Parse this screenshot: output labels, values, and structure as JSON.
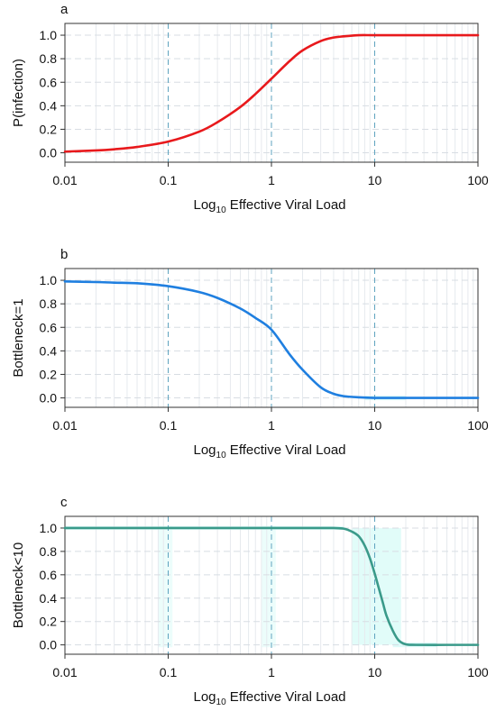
{
  "chart_data": [
    {
      "type": "line",
      "panel_label": "a",
      "xlabel_main": "Log",
      "xlabel_sub": "10",
      "xlabel_rest": " Effective Viral Load",
      "ylabel": "P(infection)",
      "xscale": "log",
      "xlim": [
        0.01,
        100
      ],
      "ylim": [
        -0.08,
        1.1
      ],
      "xticks": [
        "0.01",
        "0.1",
        "1",
        "10",
        "100"
      ],
      "yticks": [
        "0.0",
        "0.2",
        "0.4",
        "0.6",
        "0.8",
        "1.0"
      ],
      "grid": true,
      "legend": "none",
      "series": [
        {
          "color": "#e8191c",
          "x": [
            0.01,
            0.02,
            0.03,
            0.05,
            0.1,
            0.2,
            0.3,
            0.5,
            0.7,
            1,
            1.5,
            2,
            3,
            4,
            5,
            7,
            10,
            20,
            50,
            100
          ],
          "y": [
            0.01,
            0.02,
            0.03,
            0.05,
            0.095,
            0.18,
            0.26,
            0.39,
            0.5,
            0.63,
            0.78,
            0.87,
            0.95,
            0.98,
            0.99,
            1.0,
            1.0,
            1.0,
            1.0,
            1.0
          ]
        }
      ]
    },
    {
      "type": "line",
      "panel_label": "b",
      "xlabel_main": "Log",
      "xlabel_sub": "10",
      "xlabel_rest": " Effective Viral Load",
      "ylabel": "Bottleneck=1",
      "xscale": "log",
      "xlim": [
        0.01,
        100
      ],
      "ylim": [
        -0.08,
        1.1
      ],
      "xticks": [
        "0.01",
        "0.1",
        "1",
        "10",
        "100"
      ],
      "yticks": [
        "0.0",
        "0.2",
        "0.4",
        "0.6",
        "0.8",
        "1.0"
      ],
      "grid": true,
      "legend": "none",
      "series": [
        {
          "color": "#1f7fe0",
          "x": [
            0.01,
            0.02,
            0.03,
            0.05,
            0.1,
            0.2,
            0.3,
            0.5,
            0.7,
            1,
            1.5,
            2,
            3,
            4,
            5,
            7,
            10,
            20,
            50,
            100
          ],
          "y": [
            0.99,
            0.985,
            0.98,
            0.975,
            0.95,
            0.9,
            0.85,
            0.76,
            0.68,
            0.58,
            0.37,
            0.24,
            0.09,
            0.035,
            0.015,
            0.005,
            0.0,
            0.0,
            0.0,
            0.0
          ]
        }
      ]
    },
    {
      "type": "line",
      "panel_label": "c",
      "xlabel_main": "Log",
      "xlabel_sub": "10",
      "xlabel_rest": " Effective Viral Load",
      "ylabel": "Bottleneck<10",
      "xscale": "log",
      "xlim": [
        0.01,
        100
      ],
      "ylim": [
        -0.08,
        1.1
      ],
      "xticks": [
        "0.01",
        "0.1",
        "1",
        "10",
        "100"
      ],
      "yticks": [
        "0.0",
        "0.2",
        "0.4",
        "0.6",
        "0.8",
        "1.0"
      ],
      "grid": true,
      "legend": "none",
      "series": [
        {
          "color": "#3a9a8a",
          "x": [
            0.01,
            0.1,
            1,
            3,
            4,
            5,
            6,
            7,
            8,
            9,
            10,
            11,
            12,
            13,
            15,
            17,
            20,
            25,
            50,
            100
          ],
          "y": [
            1.0,
            1.0,
            1.0,
            1.0,
            1.0,
            0.995,
            0.97,
            0.93,
            0.85,
            0.74,
            0.61,
            0.48,
            0.36,
            0.25,
            0.12,
            0.04,
            0.005,
            0.0,
            0.0,
            0.0
          ]
        }
      ]
    }
  ],
  "colors": {
    "grid": "#d8dde3",
    "minor_grid": "#e6eaee",
    "dashed_ref": "#5fa3bf",
    "band": "#d9fbf8"
  }
}
